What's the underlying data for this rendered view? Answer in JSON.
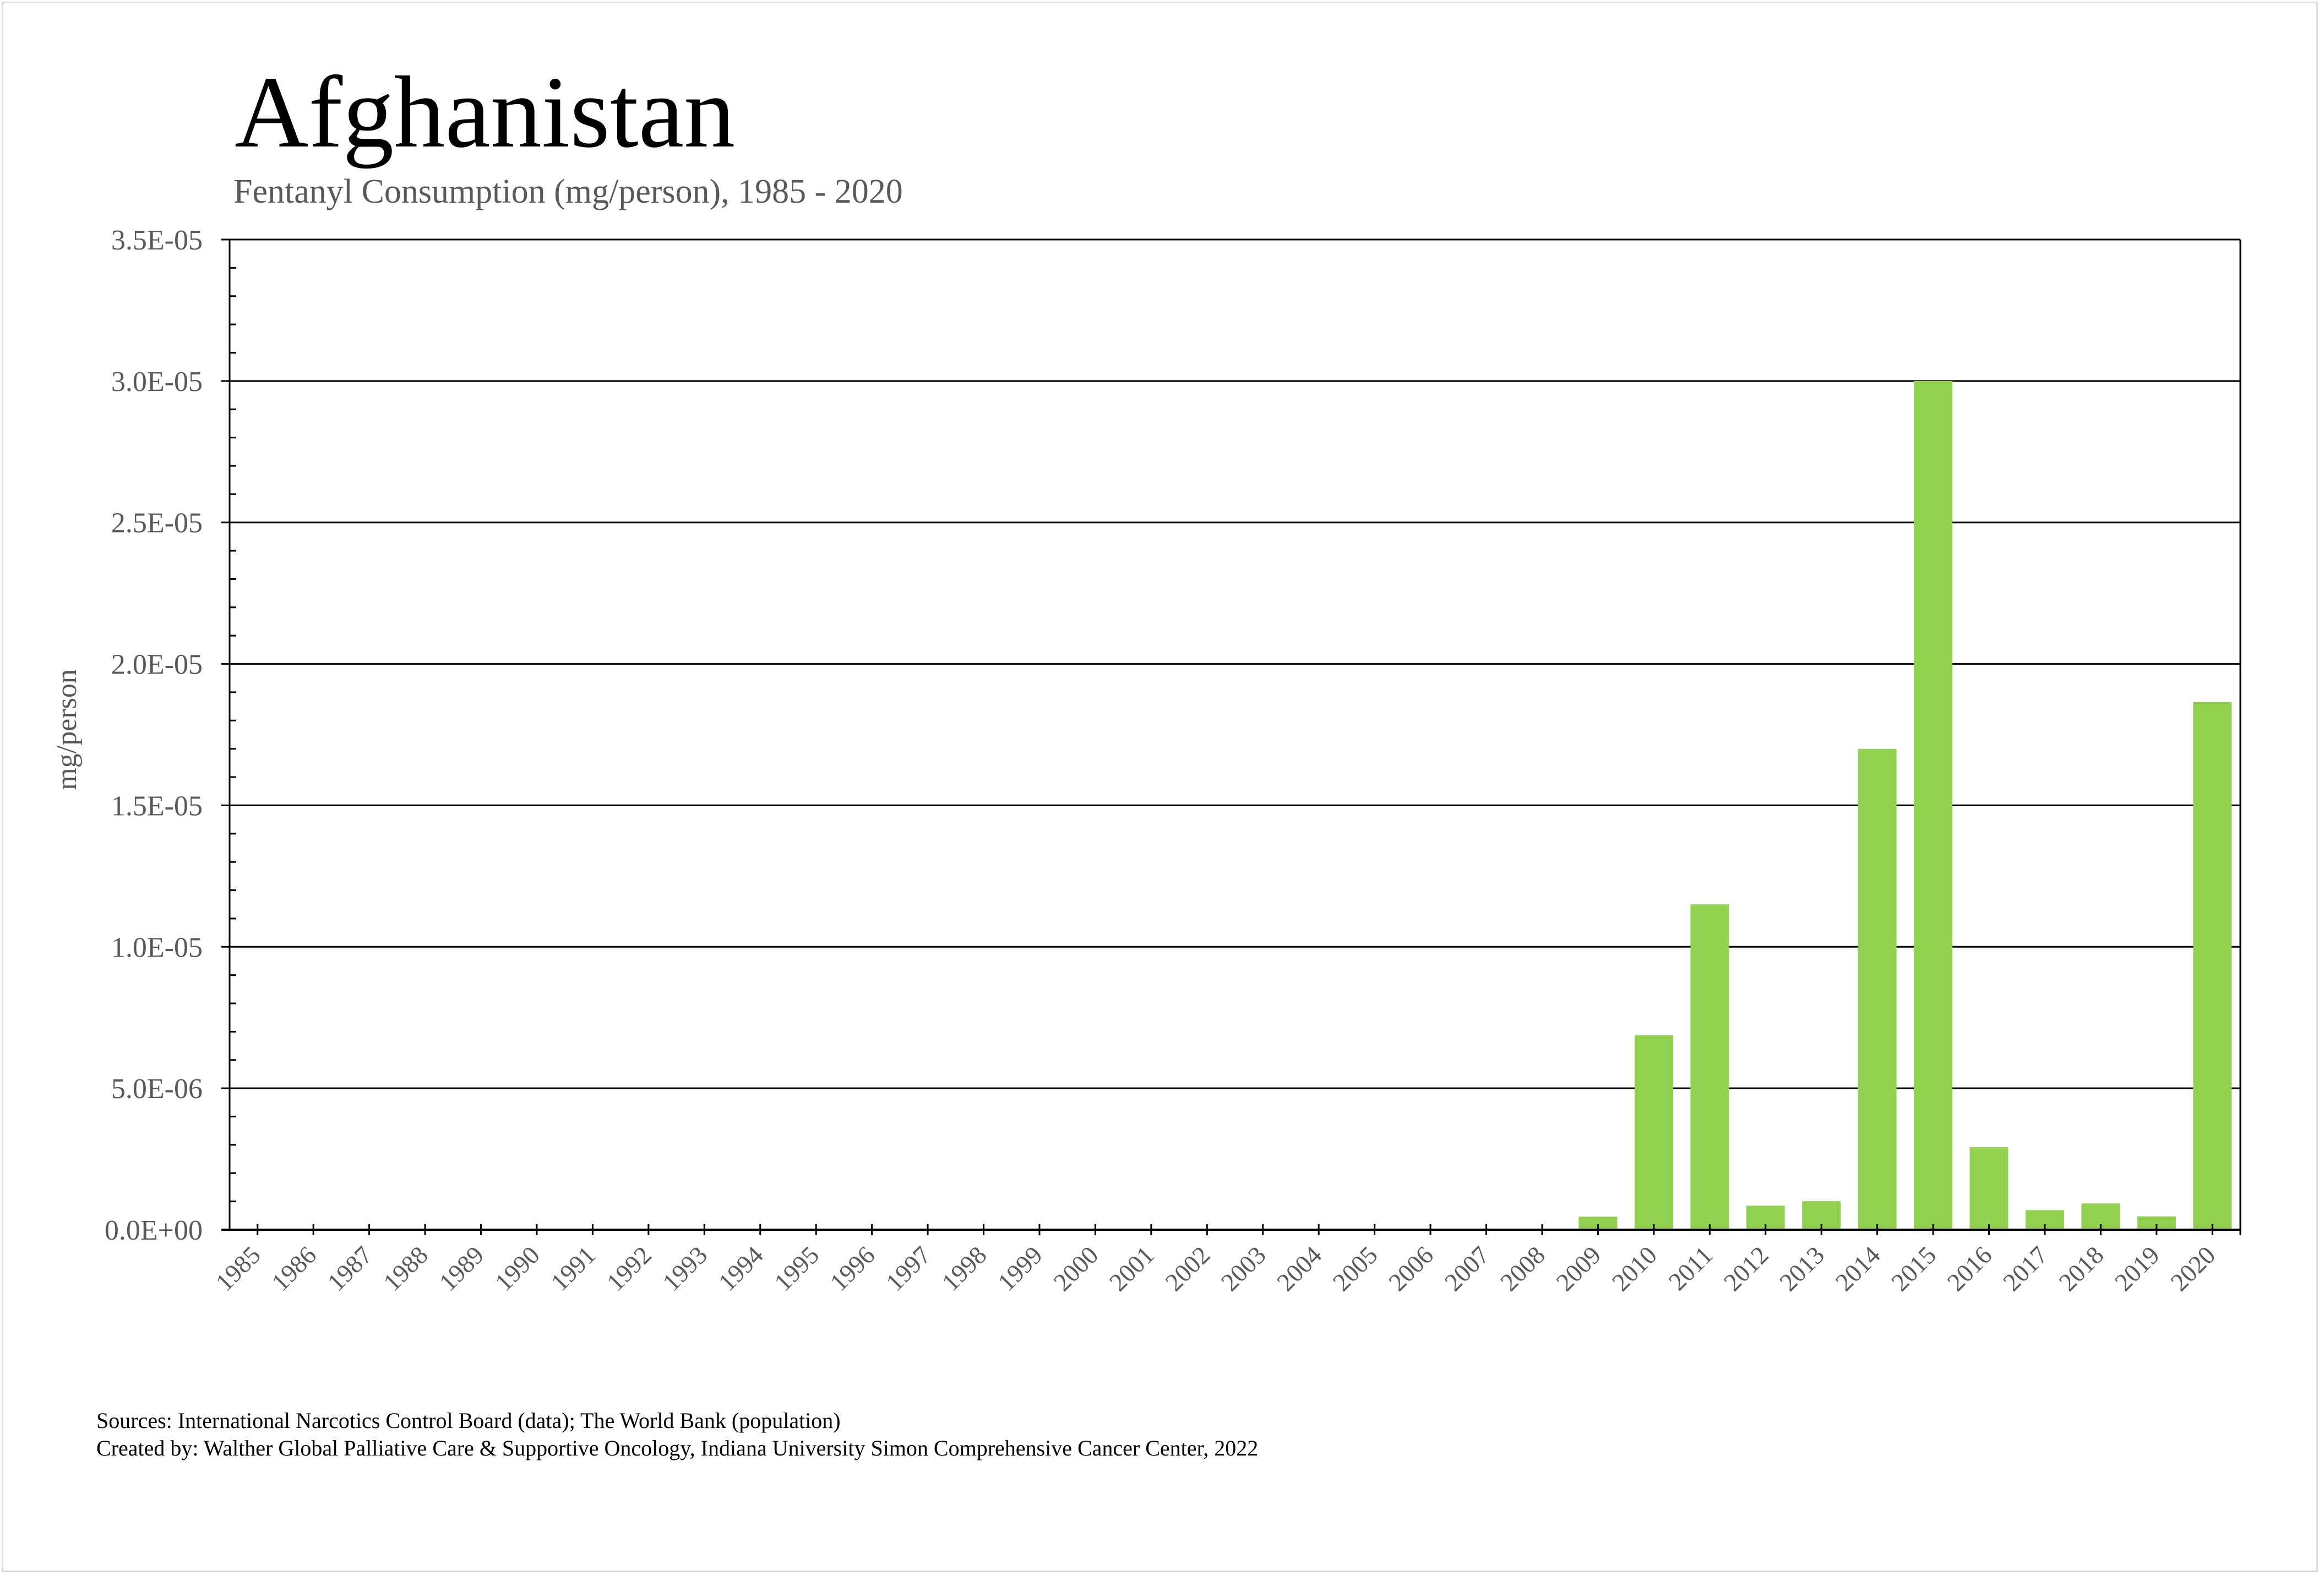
{
  "chart_data": {
    "type": "bar",
    "title": "Afghanistan",
    "subtitle": "Fentanyl Consumption (mg/person), 1985 - 2020",
    "xlabel": "",
    "ylabel": "mg/person",
    "ylim": [
      0,
      3.5e-05
    ],
    "grid": true,
    "legend": "none",
    "bar_color": "#92D050",
    "y_ticks": [
      0,
      5e-06,
      1e-05,
      1.5e-05,
      2e-05,
      2.5e-05,
      3e-05,
      3.5e-05
    ],
    "y_tick_labels": [
      "0.0E+00",
      "5.0E-06",
      "1.0E-05",
      "1.5E-05",
      "2.0E-05",
      "2.5E-05",
      "3.0E-05",
      "3.5E-05"
    ],
    "categories": [
      "1985",
      "1986",
      "1987",
      "1988",
      "1989",
      "1990",
      "1991",
      "1992",
      "1993",
      "1994",
      "1995",
      "1996",
      "1997",
      "1998",
      "1999",
      "2000",
      "2001",
      "2002",
      "2003",
      "2004",
      "2005",
      "2006",
      "2007",
      "2008",
      "2009",
      "2010",
      "2011",
      "2012",
      "2013",
      "2014",
      "2015",
      "2016",
      "2017",
      "2018",
      "2019",
      "2020"
    ],
    "values": [
      0,
      0,
      0,
      0,
      0,
      0,
      0,
      0,
      0,
      0,
      0,
      0,
      0,
      0,
      0,
      0,
      0,
      0,
      0,
      0,
      0,
      0,
      0,
      0,
      4.6e-07,
      6.87e-06,
      1.15e-05,
      8.5e-07,
      1.01e-06,
      1.7e-05,
      3e-05,
      2.92e-06,
      6.9e-07,
      9.3e-07,
      4.7e-07,
      1.865e-05
    ]
  },
  "footer": {
    "sources": "Sources: International Narcotics Control Board (data); The World Bank (population)",
    "created_by": "Created by: Walther Global Palliative Care & Supportive Oncology, Indiana University Simon Comprehensive Cancer Center, 2022"
  }
}
